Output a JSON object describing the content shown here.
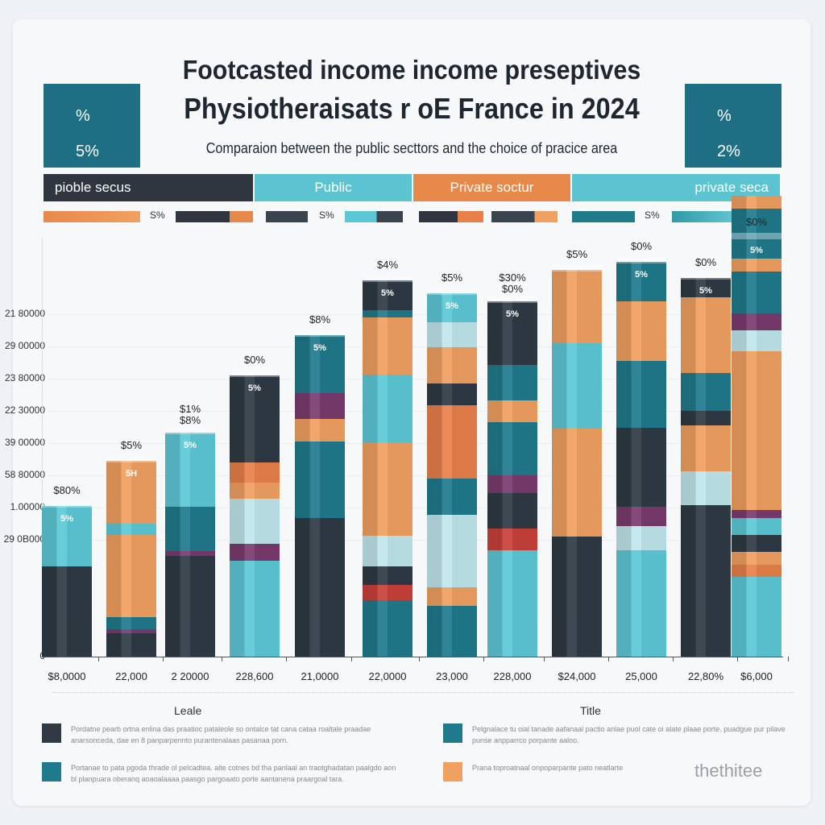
{
  "header": {
    "title_line1": "Footcasted income income preseptives",
    "title_line2": "Physiotheraisats r oE France in 2024",
    "subtitle": "Comparaion between the public secttors and the choice of pracice area",
    "left_box": [
      "%",
      "5%"
    ],
    "right_box": [
      "%",
      "2%"
    ]
  },
  "bands": [
    {
      "label": "pioble secus",
      "color": "#2f363f"
    },
    {
      "label": "Public",
      "color": "#5cc3d0"
    },
    {
      "label": "Private soctur",
      "color": "#e8894c"
    },
    {
      "label": "private seca",
      "color": "#5cc3d0"
    }
  ],
  "swatch_labels": [
    "S%",
    "S%",
    "S%"
  ],
  "chart_data": {
    "type": "bar",
    "stacked": true,
    "title": "",
    "xlabel": "",
    "ylabel": "",
    "ylim": [
      0,
      100
    ],
    "y_ticks": [
      "0",
      "29 0B000",
      "1.00000",
      "58 80000",
      "39 00000",
      "22 30000",
      "23 80000",
      "29 00000",
      "21 80000"
    ],
    "categories": [
      "$8,0000",
      "22,000",
      "2 20000",
      "228,600",
      "21,0000",
      "22,0000",
      "23,000",
      "228,000",
      "$24,000",
      "25,000",
      "22,80%",
      "$6,000"
    ],
    "values": [
      35.6,
      46.3,
      53,
      66.5,
      76,
      89,
      86,
      84,
      91.4,
      93.3,
      89.5,
      99
    ],
    "top_labels": [
      "$80%",
      "$5%",
      "$1%\n$8%",
      "$0%",
      "$8%",
      "$4%",
      "$5%",
      "$30%\n$0%",
      "$5%",
      "$0%",
      "$0%",
      "$0%"
    ],
    "inner_labels": [
      "5%",
      "5H",
      "5%",
      "5%",
      "5%",
      "5%",
      "5%",
      "5%",
      "",
      "5%",
      "5%",
      "5%"
    ],
    "segments": [
      [
        [
          "#2f3a44",
          0.6
        ],
        [
          "#5cc8d6",
          0.4
        ]
      ],
      [
        [
          "#2f3a44",
          0.12
        ],
        [
          "#7a3b6e",
          0.02
        ],
        [
          "#1f7a8c",
          0.06
        ],
        [
          "#f0a060",
          0.42
        ],
        [
          "#5cc8d6",
          0.06
        ],
        [
          "#f0a060",
          0.32
        ]
      ],
      [
        [
          "#2f3a44",
          0.45
        ],
        [
          "#7a3b6e",
          0.02
        ],
        [
          "#1f7a8c",
          0.2
        ],
        [
          "#5cc8d6",
          0.33
        ]
      ],
      [
        [
          "#5cc8d6",
          0.34
        ],
        [
          "#7a3b6e",
          0.06
        ],
        [
          "#bfe6ec",
          0.16
        ],
        [
          "#f0a060",
          0.06
        ],
        [
          "#e8804a",
          0.07
        ],
        [
          "#2f3a44",
          0.31
        ]
      ],
      [
        [
          "#2f3a44",
          0.43
        ],
        [
          "#1f7a8c",
          0.24
        ],
        [
          "#f0a060",
          0.07
        ],
        [
          "#7a3b6e",
          0.08
        ],
        [
          "#1f7a8c",
          0.18
        ]
      ],
      [
        [
          "#1f7a8c",
          0.15
        ],
        [
          "#c8413a",
          0.04
        ],
        [
          "#2f3a44",
          0.05
        ],
        [
          "#bfe6ec",
          0.08
        ],
        [
          "#f0a060",
          0.25
        ],
        [
          "#5cc8d6",
          0.18
        ],
        [
          "#f0a060",
          0.15
        ],
        [
          "#1f7a8c",
          0.02
        ],
        [
          "#2f3a44",
          0.08
        ]
      ],
      [
        [
          "#1f7a8c",
          0.14
        ],
        [
          "#f0a060",
          0.05
        ],
        [
          "#bfe6ec",
          0.2
        ],
        [
          "#1f7a8c",
          0.1
        ],
        [
          "#e8804a",
          0.2
        ],
        [
          "#2f3a44",
          0.06
        ],
        [
          "#f0a060",
          0.1
        ],
        [
          "#bfe6ec",
          0.07
        ],
        [
          "#5cc8d6",
          0.08
        ]
      ],
      [
        [
          "#5cc8d6",
          0.3
        ],
        [
          "#c8413a",
          0.06
        ],
        [
          "#2f3a44",
          0.1
        ],
        [
          "#7a3b6e",
          0.05
        ],
        [
          "#1f7a8c",
          0.15
        ],
        [
          "#f0a060",
          0.06
        ],
        [
          "#1f7a8c",
          0.1
        ],
        [
          "#2f3a44",
          0.18
        ]
      ],
      [
        [
          "#2f3a44",
          0.31
        ],
        [
          "#f0a060",
          0.28
        ],
        [
          "#5cc8d6",
          0.22
        ],
        [
          "#f0a060",
          0.19
        ]
      ],
      [
        [
          "#5cc8d6",
          0.27
        ],
        [
          "#bfe6ec",
          0.06
        ],
        [
          "#7a3b6e",
          0.05
        ],
        [
          "#2f3a44",
          0.2
        ],
        [
          "#1f7a8c",
          0.17
        ],
        [
          "#f0a060",
          0.15
        ],
        [
          "#1f7a8c",
          0.1
        ]
      ],
      [
        [
          "#2f3a44",
          0.4
        ],
        [
          "#bfe6ec",
          0.09
        ],
        [
          "#f0a060",
          0.12
        ],
        [
          "#2f3a44",
          0.04
        ],
        [
          "#1f7a8c",
          0.1
        ],
        [
          "#f0a060",
          0.2
        ],
        [
          "#2f3a44",
          0.05
        ]
      ],
      [
        [
          "#5cc8d6",
          0.19
        ],
        [
          "#e8804a",
          0.03
        ],
        [
          "#f0a060",
          0.03
        ],
        [
          "#2f3a44",
          0.04
        ],
        [
          "#5cc8d6",
          0.04
        ],
        [
          "#7a3b6e",
          0.02
        ],
        [
          "#f0a060",
          0.38
        ],
        [
          "#bfe6ec",
          0.05
        ],
        [
          "#7a3b6e",
          0.04
        ],
        [
          "#1f7a8c",
          0.1
        ],
        [
          "#f0a060",
          0.03
        ],
        [
          "#1f7a8c",
          0.12
        ],
        [
          "#f0a060",
          0.03
        ]
      ]
    ]
  },
  "legend": {
    "left_title": "Leale",
    "right_title": "Title",
    "items": [
      {
        "color": "#2f3a44",
        "text": "Pordatne pearb ortna enlina das praatioc pataleole so ontalce tat cana cataa roaltale praadae anarsonceda, dae en 8 panparpennto purantenalaas pasanaa porn."
      },
      {
        "color": "#1f7a8c",
        "text": "Pelgnalace tu oial tanade aafanaal pactio anlae puol cate oi alate plaae porte. puadgue pur pilave punse anpparrco porpante aaloo."
      },
      {
        "color": "#1f7a8c",
        "text": "Portanae to pata pgoda thrade ol pelcadtea. alte cotnes bd tha panlaal an traotghadatan paalgdo aon bl planpuara oberanq aoaoalaaaa paasgo pargoaato porte aantanena praargoal tara."
      },
      {
        "color": "#f0a060",
        "text": "Prana toproatnaal onpoparpante pato neatlarte"
      }
    ]
  },
  "watermark": "thethitee"
}
